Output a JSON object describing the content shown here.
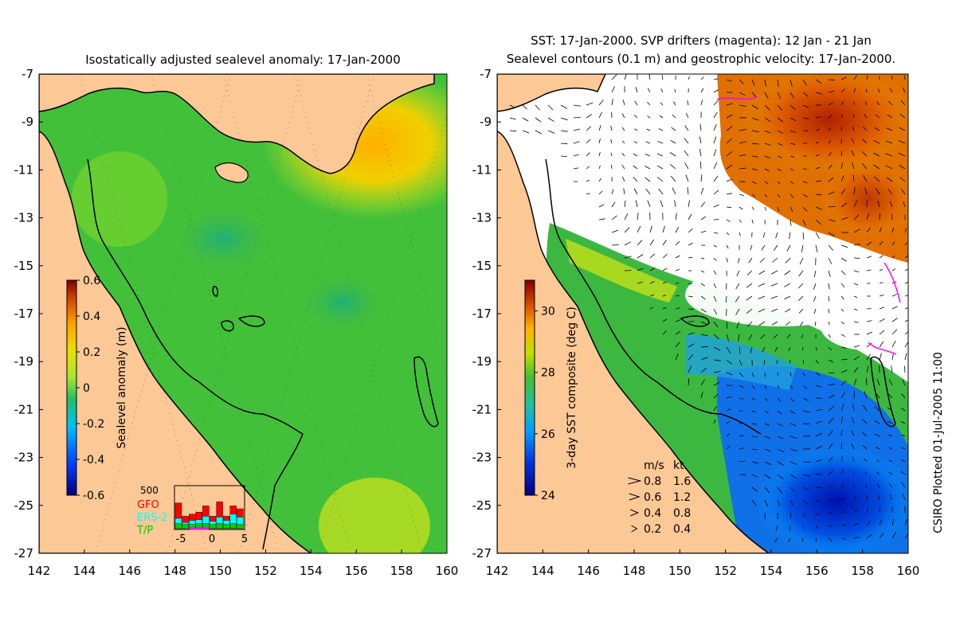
{
  "left_panel": {
    "title": "Isostatically adjusted sealevel anomaly: 17-Jan-2000",
    "colorbar": {
      "label": "Sealevel anomaly (m)",
      "ticks": [
        "0.6",
        "0.4",
        "0.2",
        "0",
        "-0.2",
        "-0.4",
        "-0.6"
      ],
      "range": [
        -0.6,
        0.6
      ],
      "colors": [
        "#00007f",
        "#0040ff",
        "#00c0ff",
        "#20c060",
        "#c0ff00",
        "#ffb000",
        "#e04000",
        "#800000"
      ]
    },
    "inset": {
      "ymax_label": "500",
      "xticks": [
        "-5",
        "0",
        "5"
      ],
      "legend": [
        {
          "label": "GFO",
          "color": "#ff0000"
        },
        {
          "label": "ERS-2",
          "color": "#00ffff"
        },
        {
          "label": "T/P",
          "color": "#00cc00"
        }
      ]
    }
  },
  "right_panel": {
    "title_line1": "SST: 17-Jan-2000. SVP drifters (magenta): 12 Jan - 21 Jan",
    "title_line2": "Sealevel contours (0.1 m) and geostrophic velocity: 17-Jan-2000.",
    "colorbar": {
      "label": "3-day SST composite (deg C)",
      "ticks": [
        "30",
        "28",
        "26",
        "24"
      ],
      "range": [
        24,
        31
      ]
    },
    "velocity_legend": {
      "header_ms": "m/s",
      "header_kt": "kt",
      "rows": [
        {
          "ms": "0.8",
          "kt": "1.6"
        },
        {
          "ms": "0.6",
          "kt": "1.2"
        },
        {
          "ms": "0.4",
          "kt": "0.8"
        },
        {
          "ms": "0.2",
          "kt": "0.4"
        }
      ]
    }
  },
  "axes": {
    "y_ticks": [
      "-7",
      "-9",
      "-11",
      "-13",
      "-15",
      "-17",
      "-19",
      "-21",
      "-23",
      "-25",
      "-27"
    ],
    "x_ticks": [
      "142",
      "144",
      "146",
      "148",
      "150",
      "152",
      "154",
      "156",
      "158",
      "160"
    ],
    "lat_range": [
      -27,
      -7
    ],
    "lon_range": [
      142,
      160
    ]
  },
  "side_note": "CSIRO Plotted 01-Jul-2005 11:00",
  "colors": {
    "land": "#fcc896",
    "ocean_green": "#43c03a",
    "ocean_yellow": "#b8e820"
  }
}
